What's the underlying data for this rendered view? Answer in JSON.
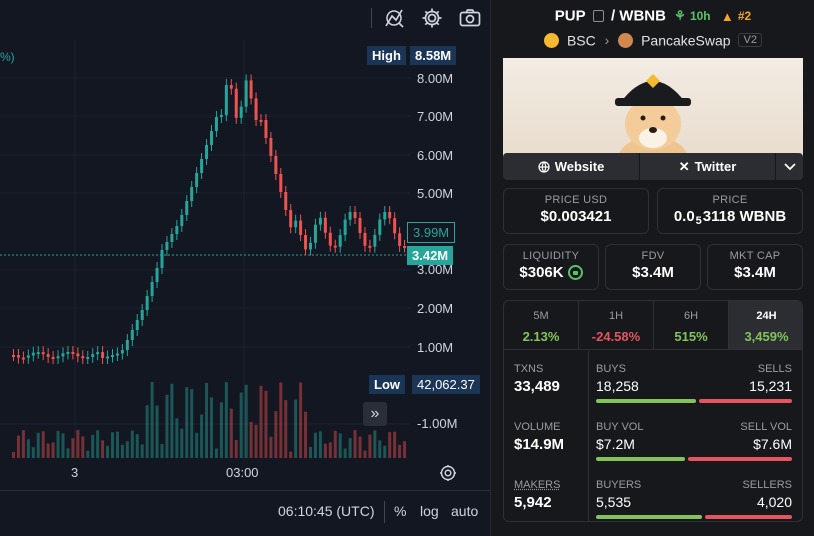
{
  "chart": {
    "pct_label": "%)",
    "high_label": "High",
    "high_value": "8.58M",
    "low_label": "Low",
    "low_value": "42,062.37",
    "current_price_tag": "3.42M",
    "other_price_tag": "3.99M",
    "y_axis_labels": [
      "8.00M",
      "7.00M",
      "6.00M",
      "5.00M",
      "3.00M",
      "2.00M",
      "1.00M",
      "-1.00M"
    ],
    "time_labels": [
      "3",
      "03:00"
    ],
    "clock": "06:10:45 (UTC)",
    "pct_button": "%",
    "log_button": "log",
    "auto_button": "auto",
    "goto_glyph": "»",
    "colors": {
      "up": "#26a69a",
      "down": "#ef5350",
      "high_badge": "#1b3556",
      "low_badge": "#1b3556"
    }
  },
  "pair": {
    "base": "PUP",
    "quote": "WBNB",
    "age": "10h",
    "rank": "#2",
    "chain": "BSC",
    "dex": "PancakeSwap",
    "version": "V2"
  },
  "links": {
    "website": "Website",
    "twitter": "Twitter"
  },
  "stats": {
    "price_usd_label": "PRICE USD",
    "price_usd": "$0.003421",
    "price_label": "PRICE",
    "price_prefix": "0.0",
    "price_sub": "5",
    "price_rest": "3118 WBNB",
    "liquidity_label": "LIQUIDITY",
    "liquidity": "$306K",
    "fdv_label": "FDV",
    "fdv": "$3.4M",
    "mktcap_label": "MKT CAP",
    "mktcap": "$3.4M"
  },
  "timeframes": [
    {
      "name": "5M",
      "value": "2.13%",
      "color": "#84c35b"
    },
    {
      "name": "1H",
      "value": "-24.58%",
      "color": "#e4555f"
    },
    {
      "name": "6H",
      "value": "515%",
      "color": "#84c35b"
    },
    {
      "name": "24H",
      "value": "3,459%",
      "color": "#84c35b"
    }
  ],
  "txns": {
    "txns_label": "TXNS",
    "txns": "33,489",
    "buys_label": "BUYS",
    "buys": "18,258",
    "sells_label": "SELLS",
    "sells": "15,231",
    "volume_label": "VOLUME",
    "volume": "$14.9M",
    "buy_vol_label": "BUY VOL",
    "buy_vol": "$7.2M",
    "sell_vol_label": "SELL VOL",
    "sell_vol": "$7.6M",
    "makers_label": "MAKERS",
    "makers": "5,942",
    "buyers_label": "BUYERS",
    "buyers": "5,535",
    "sellers_label": "SELLERS",
    "sellers": "4,020"
  }
}
